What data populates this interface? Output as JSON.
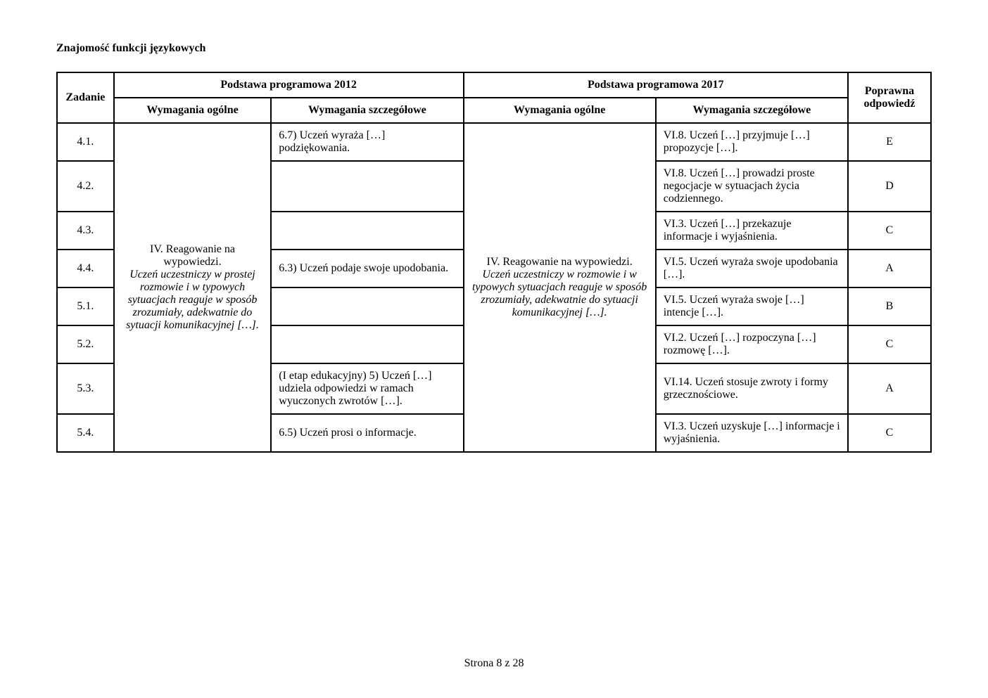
{
  "section_title": "Znajomość funkcji językowych",
  "header": {
    "zadanie": "Zadanie",
    "pp2012": "Podstawa programowa 2012",
    "pp2017": "Podstawa programowa 2017",
    "poprawna": "Poprawna odpowiedź",
    "wym_ogolne": "Wymagania ogólne",
    "wym_szczegolowe": "Wymagania szczegółowe"
  },
  "shared": {
    "ogolne2012_main": "IV. Reagowanie na wypowiedzi.",
    "ogolne2012_italic": "Uczeń uczestniczy w prostej rozmowie i w typowych sytuacjach reaguje w sposób zrozumiały, adekwatnie do sytuacji komunikacyjnej […].",
    "ogolne2017_main": "IV. Reagowanie na wypowiedzi.",
    "ogolne2017_italic": "Uczeń uczestniczy w rozmowie i w typowych sytuacjach reaguje w sposób zrozumiały, adekwatnie do sytuacji komunikacyjnej […]."
  },
  "rows": [
    {
      "id": "4.1.",
      "szcz2012": "6.7) Uczeń wyraża […] podziękowania.",
      "szcz2017": "VI.8. Uczeń […] przyjmuje […] propozycje […].",
      "ans": "E"
    },
    {
      "id": "4.2.",
      "szcz2012": "",
      "szcz2017": "VI.8. Uczeń […] prowadzi proste negocjacje w sytuacjach życia codziennego.",
      "ans": "D"
    },
    {
      "id": "4.3.",
      "szcz2012": "",
      "szcz2017": "VI.3. Uczeń […] przekazuje informacje i wyjaśnienia.",
      "ans": "C"
    },
    {
      "id": "4.4.",
      "szcz2012": "6.3) Uczeń podaje swoje upodobania.",
      "szcz2017": "VI.5. Uczeń wyraża swoje upodobania […].",
      "ans": "A"
    },
    {
      "id": "5.1.",
      "szcz2012": "",
      "szcz2017": "VI.5. Uczeń wyraża swoje […] intencje […].",
      "ans": "B"
    },
    {
      "id": "5.2.",
      "szcz2012": "",
      "szcz2017": "VI.2. Uczeń […] rozpoczyna […] rozmowę […].",
      "ans": "C"
    },
    {
      "id": "5.3.",
      "szcz2012": "(I etap edukacyjny) 5) Uczeń […] udziela odpowiedzi w ramach wyuczonych zwrotów […].",
      "szcz2017": "VI.14. Uczeń stosuje zwroty i formy grzecznościowe.",
      "ans": "A"
    },
    {
      "id": "5.4.",
      "szcz2012": "6.5) Uczeń prosi o informacje.",
      "szcz2017": "VI.3. Uczeń uzyskuje […] informacje i wyjaśnienia.",
      "ans": "C"
    }
  ],
  "footer": "Strona 8 z 28"
}
